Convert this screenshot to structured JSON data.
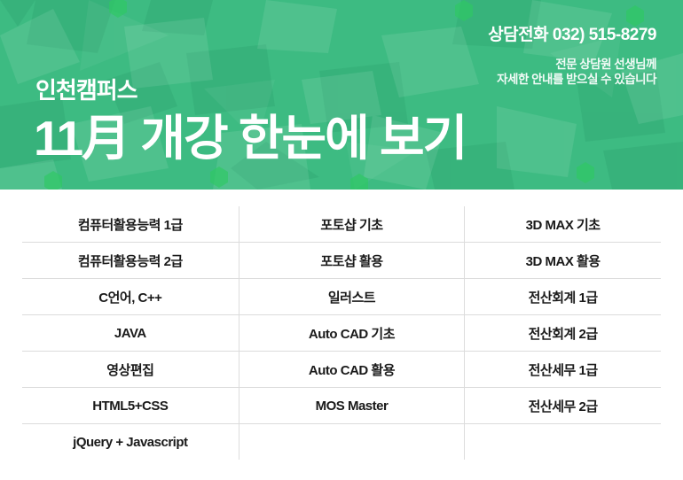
{
  "header": {
    "phone_label": "상담전화 032) 515-8279",
    "note_line1": "전문 상담원 선생님께",
    "note_line2": "자세한 안내를 받으실 수 있습니다",
    "campus": "인천캠퍼스",
    "title": "11月 개강 한눈에 보기",
    "colors": {
      "banner_base": "#3dbb82",
      "banner_shape_light": "#ffffff",
      "banner_shape_dark": "#0c6b45",
      "banner_hex_bright": "#2ec963",
      "text_on_banner": "#ffffff"
    }
  },
  "schedule_table": {
    "divider_color": "#dcdcdc",
    "text_color": "#1a1a1a",
    "rows": [
      [
        "컴퓨터활용능력 1급",
        "포토샵 기초",
        "3D MAX 기초"
      ],
      [
        "컴퓨터활용능력 2급",
        "포토샵 활용",
        "3D MAX 활용"
      ],
      [
        "C언어, C++",
        "일러스트",
        "전산회계 1급"
      ],
      [
        "JAVA",
        "Auto CAD 기초",
        "전산회계 2급"
      ],
      [
        "영상편집",
        "Auto CAD 활용",
        "전산세무 1급"
      ],
      [
        "HTML5+CSS",
        "MOS Master",
        "전산세무 2급"
      ],
      [
        "jQuery + Javascript",
        "",
        ""
      ]
    ]
  }
}
